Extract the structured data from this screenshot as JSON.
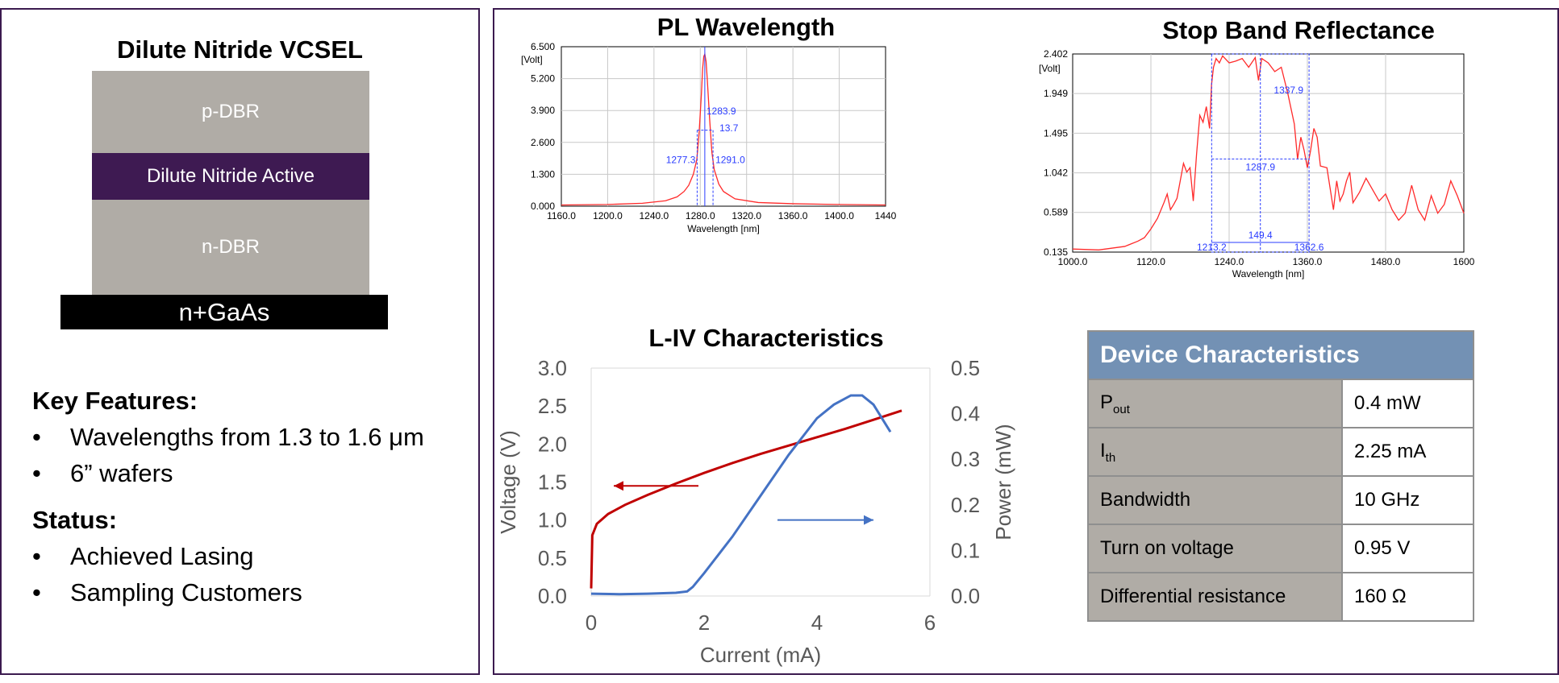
{
  "left": {
    "stack_title": "Dilute Nitride VCSEL",
    "layers": {
      "p_dbr": "p-DBR",
      "active": "Dilute Nitride Active",
      "n_dbr": "n-DBR",
      "substrate": "n+GaAs"
    },
    "key_features_heading": "Key Features:",
    "key_features": [
      "Wavelengths from 1.3 to 1.6 μm",
      "6” wafers"
    ],
    "status_heading": "Status:",
    "status": [
      "Achieved Lasing",
      "Sampling Customers"
    ],
    "bullet": "•"
  },
  "pl_chart_title": "PL Wavelength",
  "sb_chart_title": "Stop Band Reflectance",
  "liv_chart_title": "L-IV Characteristics",
  "chart_data": [
    {
      "type": "line",
      "title": "PL Wavelength",
      "xlabel": "Wavelength [nm]",
      "ylabel": "[Volt]",
      "xlim": [
        1160,
        1440
      ],
      "ylim": [
        0,
        6.5
      ],
      "x_ticks": [
        "1160.0",
        "1200.0",
        "1240.0",
        "1280.0",
        "1320.0",
        "1360.0",
        "1400.0",
        "1440"
      ],
      "y_ticks": [
        "0.000",
        "1.300",
        "2.600",
        "3.900",
        "5.200",
        "6.500"
      ],
      "series": [
        {
          "color": "#ff2a2a",
          "x": [
            1160,
            1200,
            1230,
            1250,
            1260,
            1266,
            1270,
            1274,
            1277,
            1279,
            1281,
            1282,
            1283,
            1283.9,
            1285,
            1286,
            1288,
            1290,
            1292,
            1296,
            1300,
            1310,
            1330,
            1360,
            1400,
            1440
          ],
          "y": [
            0.05,
            0.07,
            0.12,
            0.22,
            0.38,
            0.6,
            0.85,
            1.3,
            1.9,
            3.0,
            4.6,
            5.6,
            6.1,
            6.2,
            5.9,
            5.2,
            3.6,
            2.2,
            1.5,
            0.9,
            0.6,
            0.3,
            0.15,
            0.1,
            0.07,
            0.05
          ]
        }
      ],
      "annotations": {
        "peak": "1283.9",
        "fwhm": "13.7",
        "left_half": "1277.3",
        "right_half": "1291.0"
      },
      "markers": {
        "peak_x": 1283.9,
        "fwhm_left_x": 1277.3,
        "fwhm_right_x": 1291.0,
        "half_max_y": 3.1,
        "line_color": "#2a3cff"
      }
    },
    {
      "type": "line",
      "title": "Stop Band Reflectance",
      "xlabel": "Wavelength [nm]",
      "ylabel": "[Volt]",
      "xlim": [
        1000,
        1600
      ],
      "ylim": [
        0.135,
        2.402
      ],
      "x_ticks": [
        "1000.0",
        "1120.0",
        "1240.0",
        "1360.0",
        "1480.0",
        "1600"
      ],
      "x_tick_values": [
        1000,
        1120,
        1240,
        1360,
        1480,
        1600
      ],
      "y_ticks": [
        "0.135",
        "0.589",
        "1.042",
        "1.495",
        "1.949",
        "2.402"
      ],
      "y_tick_values": [
        0.135,
        0.589,
        1.042,
        1.495,
        1.949,
        2.402
      ],
      "series": [
        {
          "color": "#ff2a2a",
          "x": [
            1000,
            1040,
            1080,
            1100,
            1110,
            1120,
            1130,
            1140,
            1145,
            1150,
            1155,
            1160,
            1165,
            1170,
            1175,
            1180,
            1185,
            1190,
            1195,
            1200,
            1205,
            1210,
            1213,
            1216,
            1220,
            1225,
            1230,
            1240,
            1250,
            1260,
            1270,
            1280,
            1285,
            1290,
            1300,
            1310,
            1320,
            1330,
            1340,
            1345,
            1350,
            1355,
            1360,
            1365,
            1370,
            1375,
            1380,
            1390,
            1400,
            1405,
            1410,
            1415,
            1420,
            1425,
            1430,
            1440,
            1450,
            1460,
            1470,
            1480,
            1490,
            1500,
            1510,
            1520,
            1530,
            1540,
            1550,
            1560,
            1570,
            1580,
            1590,
            1600
          ],
          "y": [
            0.17,
            0.16,
            0.2,
            0.26,
            0.3,
            0.4,
            0.52,
            0.7,
            0.8,
            0.62,
            0.68,
            0.75,
            0.95,
            1.15,
            1.05,
            1.1,
            0.72,
            1.25,
            1.7,
            1.62,
            1.8,
            1.55,
            2.05,
            2.25,
            2.35,
            2.3,
            2.38,
            2.3,
            2.32,
            2.35,
            2.25,
            2.36,
            2.1,
            2.35,
            2.3,
            2.2,
            2.25,
            1.95,
            1.6,
            1.2,
            1.45,
            1.3,
            1.1,
            1.3,
            1.55,
            1.45,
            1.12,
            1.1,
            0.62,
            0.95,
            0.72,
            0.8,
            0.95,
            1.05,
            0.7,
            0.82,
            0.98,
            0.85,
            0.72,
            0.8,
            0.62,
            0.5,
            0.58,
            0.9,
            0.62,
            0.5,
            0.78,
            0.58,
            0.68,
            0.95,
            0.78,
            0.58
          ]
        }
      ],
      "annotations": {
        "center": "1287.9",
        "upper": "1337.9",
        "bandwidth": "149.4",
        "left_edge": "1213.2",
        "right_edge": "1362.6"
      },
      "markers": {
        "left_x": 1213.2,
        "right_x": 1362.6,
        "center_x": 1287.9,
        "mid_y": 1.2,
        "line_color": "#2a3cff"
      }
    },
    {
      "type": "line",
      "title": "L-IV Characteristics",
      "xlabel": "Current (mA)",
      "ylabel": "Voltage (V)",
      "y2label": "Power (mW)",
      "xlim": [
        0,
        6
      ],
      "ylim": [
        0,
        3.0
      ],
      "y2lim": [
        0,
        0.5
      ],
      "x_ticks": [
        "0",
        "2",
        "4",
        "6"
      ],
      "x_tick_values": [
        0,
        2,
        4,
        6
      ],
      "y_ticks": [
        "0.0",
        "0.5",
        "1.0",
        "1.5",
        "2.0",
        "2.5",
        "3.0"
      ],
      "y_tick_values": [
        0,
        0.5,
        1.0,
        1.5,
        2.0,
        2.5,
        3.0
      ],
      "y2_ticks": [
        "0.0",
        "0.1",
        "0.2",
        "0.3",
        "0.4",
        "0.5"
      ],
      "y2_tick_values": [
        0,
        0.1,
        0.2,
        0.3,
        0.4,
        0.5
      ],
      "series": [
        {
          "name": "",
          "axis": "left",
          "color": "#c00000",
          "x": [
            0,
            0.02,
            0.1,
            0.3,
            0.6,
            1.0,
            1.5,
            2.0,
            2.5,
            3.0,
            3.5,
            4.0,
            4.5,
            5.0,
            5.5
          ],
          "y": [
            0.1,
            0.8,
            0.95,
            1.08,
            1.2,
            1.33,
            1.48,
            1.62,
            1.75,
            1.87,
            1.98,
            2.09,
            2.2,
            2.32,
            2.44
          ]
        },
        {
          "name": "",
          "axis": "right",
          "color": "#4472c4",
          "x": [
            0,
            0.5,
            1.0,
            1.5,
            1.7,
            1.8,
            2.0,
            2.5,
            3.0,
            3.5,
            4.0,
            4.3,
            4.6,
            4.8,
            5.0,
            5.2,
            5.3
          ],
          "y": [
            0.005,
            0.004,
            0.005,
            0.007,
            0.01,
            0.02,
            0.05,
            0.13,
            0.22,
            0.31,
            0.39,
            0.42,
            0.44,
            0.44,
            0.42,
            0.38,
            0.36
          ]
        }
      ],
      "arrows": [
        {
          "from": [
            1.9,
            1.45
          ],
          "to": [
            0.4,
            1.45
          ],
          "color": "#c00000"
        },
        {
          "from": [
            3.3,
            1.0
          ],
          "to": [
            5.0,
            1.0
          ],
          "color": "#4472c4"
        }
      ]
    }
  ],
  "table": {
    "header": "Device Characteristics",
    "rows": [
      {
        "key": "P",
        "key_sub": "out",
        "value": "0.4 mW"
      },
      {
        "key": "I",
        "key_sub": "th",
        "value": "2.25 mA"
      },
      {
        "key": "Bandwidth",
        "key_sub": "",
        "value": "10 GHz"
      },
      {
        "key": "Turn on voltage",
        "key_sub": "",
        "value": "0.95 V"
      },
      {
        "key": "Differential resistance",
        "key_sub": "",
        "value": "160 Ω"
      }
    ]
  }
}
